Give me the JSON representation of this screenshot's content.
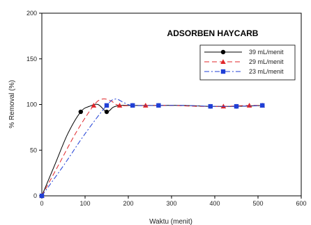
{
  "chart_data": {
    "type": "line",
    "title": "ADSORBEN HAYCARB",
    "xlabel": "Waktu (menit)",
    "ylabel": "% Removal (%)",
    "xlim": [
      0,
      600
    ],
    "ylim": [
      0,
      200
    ],
    "xticks": [
      0,
      100,
      200,
      300,
      400,
      500,
      600
    ],
    "yticks": [
      0,
      50,
      100,
      150,
      200
    ],
    "grid": false,
    "legend_position": "top-right",
    "series": [
      {
        "name": "39 mL/menit",
        "color": "#000000",
        "marker": "circle",
        "line_style": "solid",
        "points": [
          [
            0,
            0
          ],
          [
            90,
            92
          ],
          [
            150,
            92
          ],
          [
            210,
            99
          ],
          [
            270,
            99
          ],
          [
            390,
            98
          ],
          [
            450,
            98
          ],
          [
            510,
            99
          ]
        ],
        "curve": [
          [
            0,
            0
          ],
          [
            30,
            34
          ],
          [
            60,
            68
          ],
          [
            90,
            92
          ],
          [
            110,
            98
          ],
          [
            130,
            100
          ],
          [
            150,
            92
          ],
          [
            165,
            97
          ],
          [
            180,
            99
          ],
          [
            210,
            99
          ],
          [
            270,
            99
          ],
          [
            330,
            99
          ],
          [
            390,
            98
          ],
          [
            450,
            98
          ],
          [
            510,
            99
          ]
        ]
      },
      {
        "name": "29 mL/menit",
        "color": "#e0262a",
        "marker": "triangle",
        "line_style": "dashed",
        "points": [
          [
            0,
            0
          ],
          [
            120,
            99
          ],
          [
            180,
            99
          ],
          [
            240,
            99
          ],
          [
            420,
            98
          ],
          [
            480,
            99
          ],
          [
            510,
            99
          ]
        ],
        "curve": [
          [
            0,
            0
          ],
          [
            40,
            35
          ],
          [
            80,
            70
          ],
          [
            120,
            99
          ],
          [
            140,
            106
          ],
          [
            160,
            104
          ],
          [
            180,
            99
          ],
          [
            240,
            99
          ],
          [
            300,
            99
          ],
          [
            360,
            98
          ],
          [
            420,
            98
          ],
          [
            480,
            99
          ],
          [
            510,
            99
          ]
        ]
      },
      {
        "name": "23 mL/menit",
        "color": "#1f3fd6",
        "marker": "square",
        "line_style": "dashdot",
        "points": [
          [
            0,
            0
          ],
          [
            150,
            99
          ],
          [
            210,
            99
          ],
          [
            270,
            99
          ],
          [
            390,
            98
          ],
          [
            450,
            98
          ],
          [
            510,
            99
          ]
        ],
        "curve": [
          [
            0,
            0
          ],
          [
            50,
            33
          ],
          [
            100,
            68
          ],
          [
            150,
            99
          ],
          [
            170,
            106
          ],
          [
            190,
            102
          ],
          [
            210,
            99
          ],
          [
            270,
            99
          ],
          [
            330,
            99
          ],
          [
            390,
            98
          ],
          [
            450,
            98
          ],
          [
            510,
            99
          ]
        ]
      }
    ]
  }
}
